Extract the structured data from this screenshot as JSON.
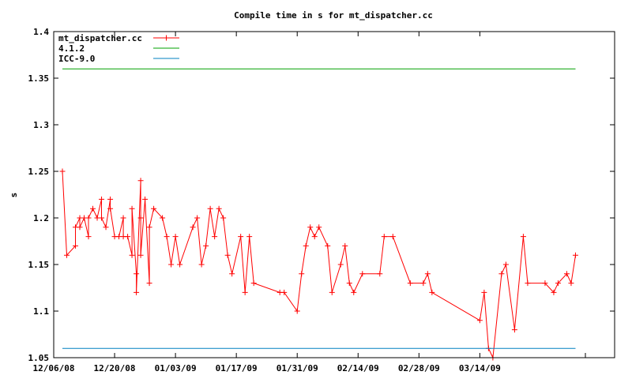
{
  "chart_data": {
    "type": "line",
    "title": "Compile time in s for mt_dispatcher.cc",
    "ylabel": "s",
    "xlabel": "",
    "x_axis_kind": "date",
    "xlim": [
      "12/06/08",
      "04/14/09"
    ],
    "ylim": [
      1.05,
      1.4
    ],
    "x_ticks": [
      "12/06/08",
      "12/20/08",
      "01/03/09",
      "01/17/09",
      "01/31/09",
      "02/14/09",
      "02/28/09",
      "03/14/09"
    ],
    "y_ticks": [
      "1.05",
      "1.1",
      "1.15",
      "1.2",
      "1.25",
      "1.3",
      "1.35",
      "1.4"
    ],
    "legend_position": "top-left",
    "series": [
      {
        "name": "mt_dispatcher.cc",
        "color": "#ff0000",
        "marker": "plus",
        "points": [
          [
            "12/08/08",
            1.25
          ],
          [
            "12/09/08",
            1.16
          ],
          [
            "12/11/08",
            1.17
          ],
          [
            "12/11/08",
            1.19
          ],
          [
            "12/12/08",
            1.2
          ],
          [
            "12/12/08",
            1.19
          ],
          [
            "12/13/08",
            1.2
          ],
          [
            "12/14/08",
            1.18
          ],
          [
            "12/14/08",
            1.2
          ],
          [
            "12/15/08",
            1.21
          ],
          [
            "12/16/08",
            1.2
          ],
          [
            "12/17/08",
            1.22
          ],
          [
            "12/17/08",
            1.2
          ],
          [
            "12/18/08",
            1.19
          ],
          [
            "12/19/08",
            1.22
          ],
          [
            "12/19/08",
            1.21
          ],
          [
            "12/20/08",
            1.18
          ],
          [
            "12/21/08",
            1.18
          ],
          [
            "12/22/08",
            1.2
          ],
          [
            "12/22/08",
            1.18
          ],
          [
            "12/23/08",
            1.18
          ],
          [
            "12/24/08",
            1.16
          ],
          [
            "12/24/08",
            1.21
          ],
          [
            "12/25/08",
            1.14
          ],
          [
            "12/25/08",
            1.12
          ],
          [
            "12/26/08",
            1.24
          ],
          [
            "12/26/08",
            1.2
          ],
          [
            "12/26/08",
            1.16
          ],
          [
            "12/27/08",
            1.22
          ],
          [
            "12/28/08",
            1.13
          ],
          [
            "12/28/08",
            1.19
          ],
          [
            "12/29/08",
            1.21
          ],
          [
            "12/31/08",
            1.2
          ],
          [
            "01/01/09",
            1.18
          ],
          [
            "01/02/09",
            1.15
          ],
          [
            "01/03/09",
            1.18
          ],
          [
            "01/04/09",
            1.15
          ],
          [
            "01/07/09",
            1.19
          ],
          [
            "01/08/09",
            1.2
          ],
          [
            "01/09/09",
            1.15
          ],
          [
            "01/10/09",
            1.17
          ],
          [
            "01/11/09",
            1.21
          ],
          [
            "01/12/09",
            1.18
          ],
          [
            "01/13/09",
            1.21
          ],
          [
            "01/14/09",
            1.2
          ],
          [
            "01/15/09",
            1.16
          ],
          [
            "01/16/09",
            1.14
          ],
          [
            "01/18/09",
            1.18
          ],
          [
            "01/19/09",
            1.12
          ],
          [
            "01/20/09",
            1.18
          ],
          [
            "01/21/09",
            1.13
          ],
          [
            "01/27/09",
            1.12
          ],
          [
            "01/28/09",
            1.12
          ],
          [
            "01/31/09",
            1.1
          ],
          [
            "02/01/09",
            1.14
          ],
          [
            "02/02/09",
            1.17
          ],
          [
            "02/03/09",
            1.19
          ],
          [
            "02/04/09",
            1.18
          ],
          [
            "02/05/09",
            1.19
          ],
          [
            "02/07/09",
            1.17
          ],
          [
            "02/08/09",
            1.12
          ],
          [
            "02/10/09",
            1.15
          ],
          [
            "02/11/09",
            1.17
          ],
          [
            "02/12/09",
            1.13
          ],
          [
            "02/13/09",
            1.12
          ],
          [
            "02/15/09",
            1.14
          ],
          [
            "02/19/09",
            1.14
          ],
          [
            "02/20/09",
            1.18
          ],
          [
            "02/22/09",
            1.18
          ],
          [
            "02/26/09",
            1.13
          ],
          [
            "03/01/09",
            1.13
          ],
          [
            "03/02/09",
            1.14
          ],
          [
            "03/03/09",
            1.12
          ],
          [
            "03/14/09",
            1.09
          ],
          [
            "03/15/09",
            1.12
          ],
          [
            "03/16/09",
            1.06
          ],
          [
            "03/17/09",
            1.05
          ],
          [
            "03/19/09",
            1.14
          ],
          [
            "03/20/09",
            1.15
          ],
          [
            "03/22/09",
            1.08
          ],
          [
            "03/24/09",
            1.18
          ],
          [
            "03/25/09",
            1.13
          ],
          [
            "03/29/09",
            1.13
          ],
          [
            "03/31/09",
            1.12
          ],
          [
            "04/01/09",
            1.13
          ],
          [
            "04/03/09",
            1.14
          ],
          [
            "04/04/09",
            1.13
          ],
          [
            "04/05/09",
            1.16
          ]
        ]
      },
      {
        "name": "4.1.2",
        "color": "#00a000",
        "marker": "none",
        "points": [
          [
            "12/08/08",
            1.36
          ],
          [
            "04/05/09",
            1.36
          ]
        ]
      },
      {
        "name": "ICC-9.0",
        "color": "#0080c0",
        "marker": "none",
        "points": [
          [
            "12/08/08",
            1.06
          ],
          [
            "04/05/09",
            1.06
          ]
        ]
      }
    ]
  }
}
